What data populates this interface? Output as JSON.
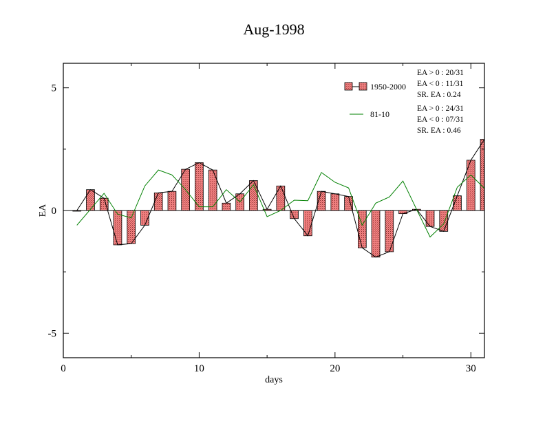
{
  "chart_data": {
    "type": "bar",
    "title": "Aug-1998",
    "xlabel": "days",
    "ylabel": "EA",
    "xlim": [
      0,
      31
    ],
    "ylim": [
      -6,
      6
    ],
    "x_ticks": [
      0,
      10,
      20,
      30
    ],
    "x_tick_labels": [
      "0",
      "10",
      "20",
      "30"
    ],
    "y_ticks": [
      -5,
      0,
      5
    ],
    "y_tick_labels": [
      "-5",
      "0",
      "5"
    ],
    "grid": false,
    "legend_position": "top-right",
    "colors": {
      "bars": "#f08080",
      "bar_edge": "#000000",
      "bar_line": "#000000",
      "line": "#008000"
    },
    "x": [
      1,
      2,
      3,
      4,
      5,
      6,
      7,
      8,
      9,
      10,
      11,
      12,
      13,
      14,
      15,
      16,
      17,
      18,
      19,
      20,
      21,
      22,
      23,
      24,
      25,
      26,
      27,
      28,
      29,
      30,
      31
    ],
    "series": [
      {
        "name": "1950-2000",
        "kind": "bar",
        "values": [
          0.0,
          0.85,
          0.5,
          -1.4,
          -1.35,
          -0.6,
          0.72,
          0.78,
          1.68,
          1.95,
          1.65,
          0.3,
          0.68,
          1.22,
          0.05,
          1.0,
          -0.33,
          -1.03,
          0.78,
          0.68,
          0.57,
          -1.52,
          -1.9,
          -1.68,
          -0.13,
          0.05,
          -0.65,
          -0.85,
          0.6,
          2.05,
          2.9
        ]
      },
      {
        "name": "81-10",
        "kind": "line",
        "values": [
          -0.6,
          0.05,
          0.7,
          -0.15,
          -0.3,
          1.0,
          1.65,
          1.45,
          0.85,
          0.15,
          0.15,
          0.85,
          0.35,
          1.05,
          -0.25,
          0.0,
          0.42,
          0.4,
          1.55,
          1.15,
          0.92,
          -0.6,
          0.3,
          0.55,
          1.2,
          0.05,
          -1.08,
          -0.55,
          0.95,
          1.45,
          0.9
        ]
      }
    ],
    "stats": [
      {
        "ea_pos": "EA > 0 : 20/31",
        "ea_neg": "EA < 0 : 11/31",
        "sr": "SR. EA :  0.24"
      },
      {
        "ea_pos": "EA > 0 : 24/31",
        "ea_neg": "EA < 0 : 07/31",
        "sr": "SR. EA :  0.46"
      }
    ]
  }
}
